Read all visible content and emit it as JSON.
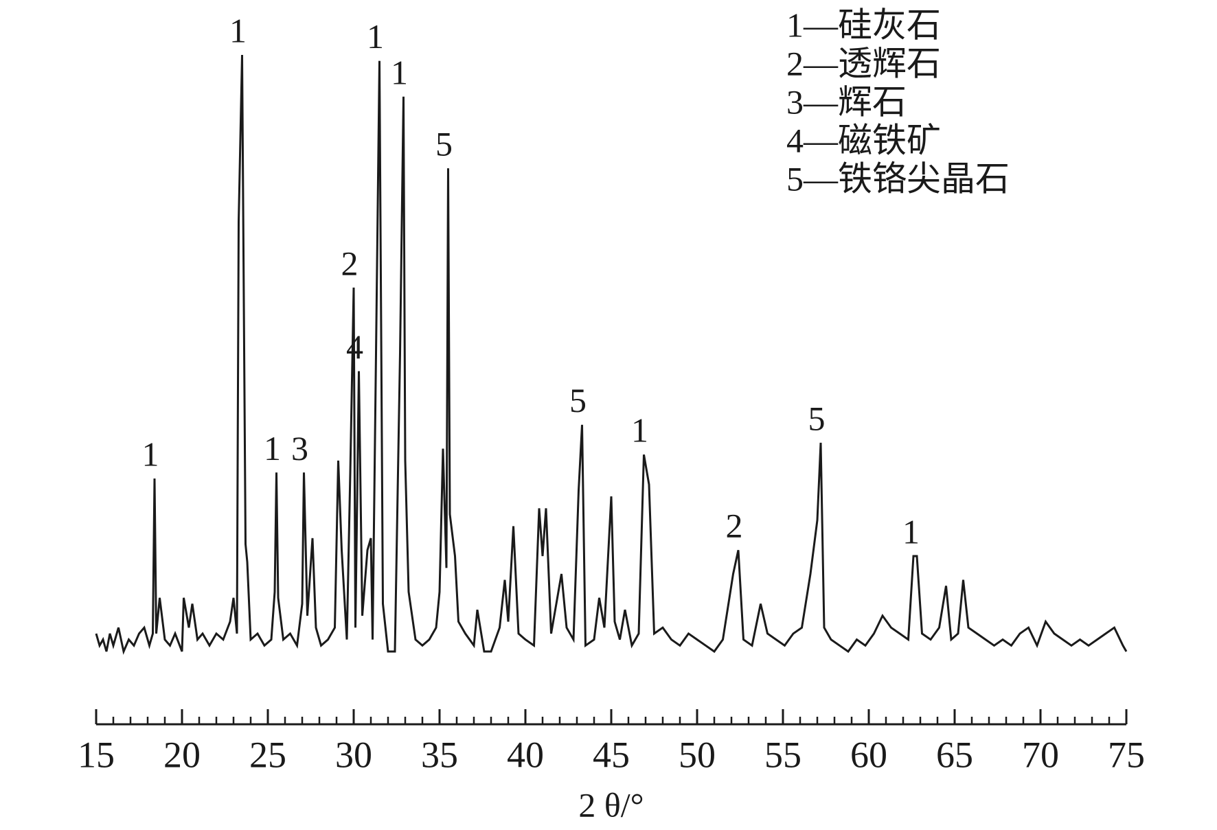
{
  "chart_data": {
    "type": "line",
    "color": "#1a1a1a",
    "x_label": "2 θ/°",
    "xlim": [
      15,
      75
    ],
    "xticks": [
      15,
      20,
      25,
      30,
      35,
      40,
      45,
      50,
      55,
      60,
      65,
      70,
      75
    ],
    "minor_tick_step": 1,
    "legend_text": [
      "1—硅灰石",
      "2—透辉石",
      "3—辉石",
      "4—磁铁矿",
      "5—铁铬尖晶石"
    ],
    "x": [
      15,
      15.2,
      15.4,
      15.6,
      15.8,
      16,
      16.3,
      16.6,
      16.9,
      17.2,
      17.5,
      17.8,
      18.1,
      18.3,
      18.4,
      18.5,
      18.7,
      19,
      19.3,
      19.6,
      20,
      20.1,
      20.4,
      20.6,
      20.9,
      21.2,
      21.6,
      22,
      22.4,
      22.8,
      23.0,
      23.2,
      23.3,
      23.5,
      23.7,
      23.8,
      24.0,
      24.4,
      24.8,
      25.2,
      25.4,
      25.5,
      25.6,
      25.9,
      26.3,
      26.7,
      27.0,
      27.1,
      27.3,
      27.6,
      27.8,
      28.1,
      28.5,
      28.9,
      29.1,
      29.3,
      29.6,
      29.8,
      30.0,
      30.1,
      30.3,
      30.5,
      30.8,
      31.0,
      31.1,
      31.3,
      31.5,
      31.7,
      32.0,
      32.4,
      32.7,
      32.9,
      33.0,
      33.2,
      33.6,
      34.0,
      34.4,
      34.8,
      35.0,
      35.2,
      35.4,
      35.5,
      35.6,
      35.9,
      36.1,
      36.5,
      37.0,
      37.2,
      37.6,
      38.0,
      38.5,
      38.8,
      39.0,
      39.3,
      39.6,
      40.0,
      40.5,
      40.8,
      41.0,
      41.2,
      41.5,
      41.8,
      42.1,
      42.4,
      42.8,
      43.1,
      43.3,
      43.5,
      44.0,
      44.3,
      44.6,
      45.0,
      45.2,
      45.5,
      45.8,
      46.2,
      46.6,
      46.9,
      47.2,
      47.5,
      48.0,
      48.5,
      49.0,
      49.5,
      50,
      50.5,
      51,
      51.5,
      52.1,
      52.4,
      52.7,
      53.2,
      53.7,
      54.1,
      54.6,
      55.1,
      55.6,
      56.1,
      56.6,
      57.0,
      57.2,
      57.4,
      57.8,
      58.3,
      58.8,
      59.3,
      59.8,
      60.3,
      60.8,
      61.3,
      61.8,
      62.3,
      62.6,
      62.8,
      63.1,
      63.6,
      64.1,
      64.5,
      64.8,
      65.2,
      65.5,
      65.8,
      66.3,
      66.8,
      67.3,
      67.8,
      68.3,
      68.8,
      69.3,
      69.8,
      70.3,
      70.8,
      71.3,
      71.8,
      72.3,
      72.8,
      73.3,
      73.8,
      74.3,
      74.8,
      75
    ],
    "values": [
      3,
      1,
      2,
      0,
      3,
      1,
      4,
      0,
      2,
      1,
      3,
      4,
      1,
      3,
      29,
      3,
      9,
      2,
      1,
      3,
      0,
      9,
      4,
      8,
      2,
      3,
      1,
      3,
      2,
      5,
      9,
      3,
      72,
      100,
      18,
      15,
      2,
      3,
      1,
      2,
      10,
      30,
      9,
      2,
      3,
      1,
      8,
      30,
      6,
      19,
      4,
      1,
      2,
      4,
      32,
      17,
      2,
      30,
      61,
      4,
      47,
      6,
      17,
      19,
      2,
      50,
      99,
      8,
      0,
      0,
      50,
      93,
      32,
      10,
      2,
      1,
      2,
      4,
      10,
      34,
      14,
      81,
      23,
      16,
      5,
      3,
      1,
      7,
      0,
      0,
      4,
      12,
      5,
      21,
      3,
      2,
      1,
      24,
      16,
      24,
      3,
      8,
      13,
      4,
      2,
      27,
      38,
      1,
      2,
      9,
      4,
      26,
      5,
      2,
      7,
      1,
      3,
      33,
      28,
      3,
      4,
      2,
      1,
      3,
      2,
      1,
      0,
      2,
      13,
      17,
      2,
      1,
      8,
      3,
      2,
      1,
      3,
      4,
      13,
      22,
      35,
      4,
      2,
      1,
      0,
      2,
      1,
      3,
      6,
      4,
      3,
      2,
      16,
      16,
      3,
      2,
      4,
      11,
      2,
      3,
      12,
      4,
      3,
      2,
      1,
      2,
      1,
      3,
      4,
      1,
      5,
      3,
      2,
      1,
      2,
      1,
      2,
      3,
      4,
      1,
      0
    ],
    "annotations": [
      {
        "x": 18.4,
        "y": 29,
        "text": "1"
      },
      {
        "x": 23.5,
        "y": 100,
        "text": "1"
      },
      {
        "x": 25.5,
        "y": 30,
        "text": "1"
      },
      {
        "x": 27.1,
        "y": 30,
        "text": "3"
      },
      {
        "x": 30.0,
        "y": 61,
        "text": "2"
      },
      {
        "x": 30.3,
        "y": 47,
        "text": "4"
      },
      {
        "x": 31.5,
        "y": 99,
        "text": "1"
      },
      {
        "x": 32.9,
        "y": 93,
        "text": "1"
      },
      {
        "x": 35.5,
        "y": 81,
        "text": "5"
      },
      {
        "x": 43.3,
        "y": 38,
        "text": "5"
      },
      {
        "x": 46.9,
        "y": 33,
        "text": "1"
      },
      {
        "x": 52.4,
        "y": 17,
        "text": "2"
      },
      {
        "x": 57.2,
        "y": 35,
        "text": "5"
      },
      {
        "x": 62.7,
        "y": 16,
        "text": "1"
      }
    ]
  }
}
